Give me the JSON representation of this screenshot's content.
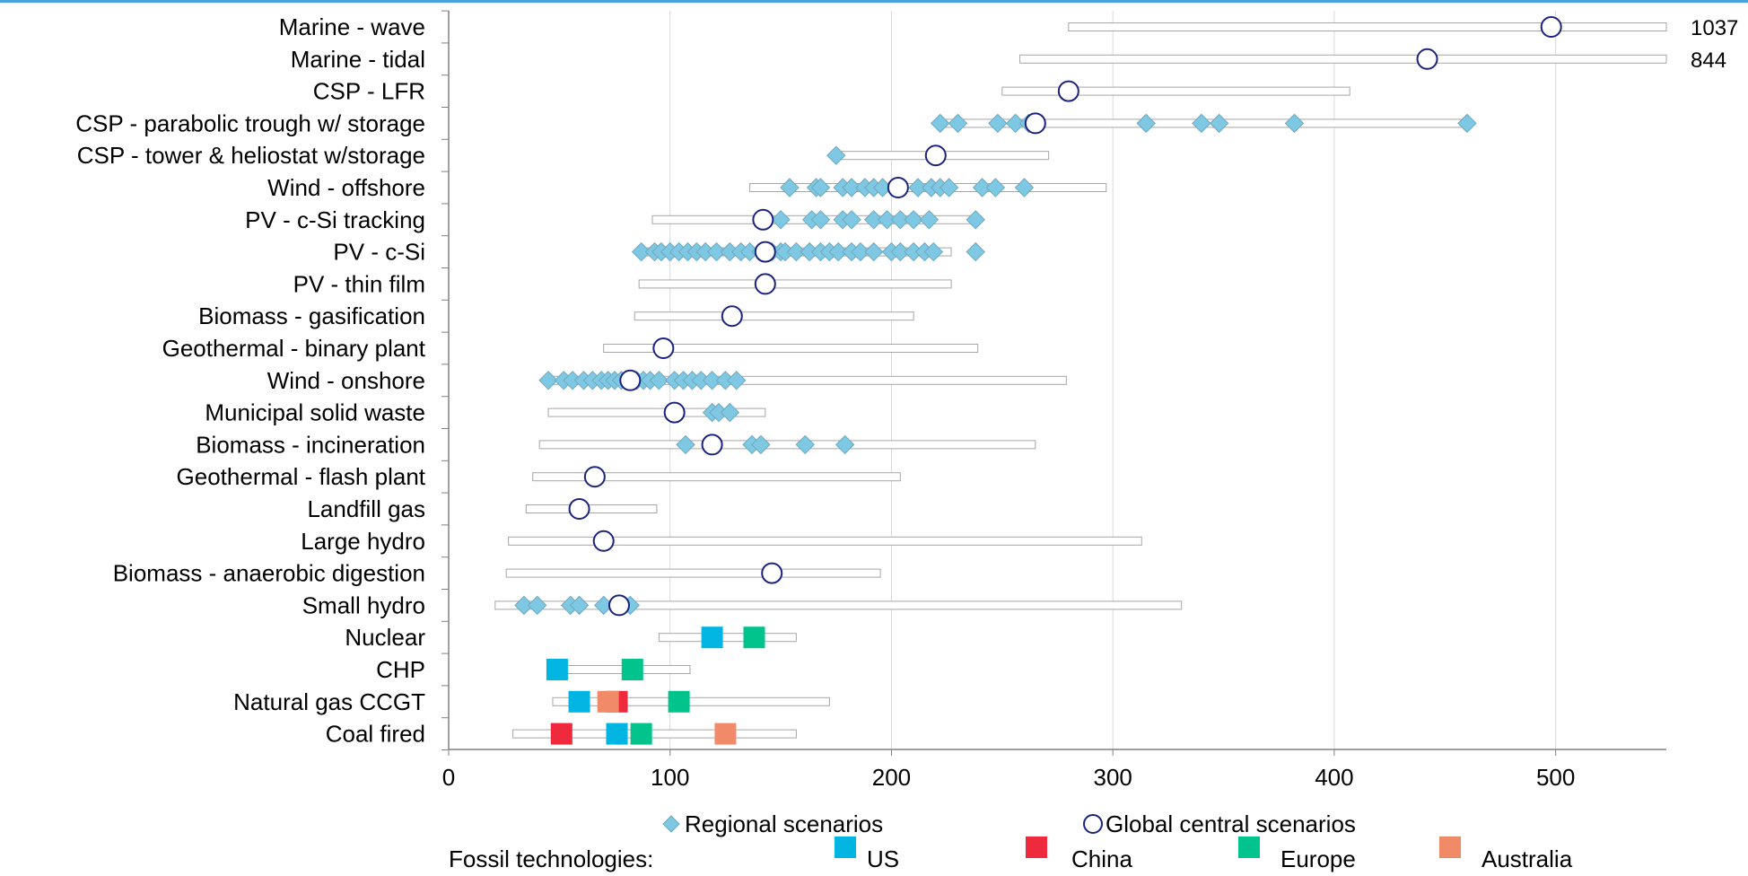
{
  "chart_data": {
    "type": "scatter",
    "title": "",
    "xlabel": "",
    "ylabel": "",
    "xlim": [
      0,
      550
    ],
    "xticks": [
      0,
      100,
      200,
      300,
      400,
      500
    ],
    "grid": "vertical",
    "categories": [
      "Marine - wave",
      "Marine - tidal",
      "CSP - LFR",
      "CSP - parabolic trough w/ storage",
      "CSP - tower & heliostat w/storage",
      "Wind - offshore",
      "PV - c-Si tracking",
      "PV - c-Si",
      "PV - thin film",
      "Biomass - gasification",
      "Geothermal - binary plant",
      "Wind - onshore",
      "Municipal solid waste",
      "Biomass - incineration",
      "Geothermal - flash plant",
      "Landfill gas",
      "Large hydro",
      "Biomass - anaerobic digestion",
      "Small hydro",
      "Nuclear",
      "CHP",
      "Natural gas CCGT",
      "Coal fired"
    ],
    "ranges": [
      {
        "min": 280,
        "max": 1037,
        "max_label": "1037"
      },
      {
        "min": 258,
        "max": 844,
        "max_label": "844"
      },
      {
        "min": 250,
        "max": 407
      },
      {
        "min": 222,
        "max": 462
      },
      {
        "min": 175,
        "max": 271
      },
      {
        "min": 136,
        "max": 297
      },
      {
        "min": 92,
        "max": 240
      },
      {
        "min": 88,
        "max": 227
      },
      {
        "min": 86,
        "max": 227
      },
      {
        "min": 84,
        "max": 210
      },
      {
        "min": 70,
        "max": 239
      },
      {
        "min": 45,
        "max": 279
      },
      {
        "min": 45,
        "max": 143
      },
      {
        "min": 41,
        "max": 265
      },
      {
        "min": 38,
        "max": 204
      },
      {
        "min": 35,
        "max": 94
      },
      {
        "min": 27,
        "max": 313
      },
      {
        "min": 26,
        "max": 195
      },
      {
        "min": 21,
        "max": 331
      },
      {
        "min": 95,
        "max": 157
      },
      {
        "min": 46,
        "max": 109
      },
      {
        "min": 47,
        "max": 172
      },
      {
        "min": 29,
        "max": 157
      }
    ],
    "series": [
      {
        "name": "Regional scenarios",
        "marker": "diamond",
        "color": "#7ec8e3",
        "values": [
          [],
          [],
          [],
          [
            222,
            230,
            248,
            256,
            262,
            315,
            340,
            348,
            382,
            460
          ],
          [
            175
          ],
          [
            154,
            166,
            168,
            178,
            182,
            188,
            192,
            196,
            212,
            218,
            222,
            226,
            241,
            247,
            260
          ],
          [
            150,
            164,
            168,
            178,
            182,
            192,
            198,
            204,
            210,
            217,
            238
          ],
          [
            87,
            93,
            96,
            100,
            104,
            108,
            112,
            116,
            121,
            127,
            132,
            136,
            141,
            146,
            150,
            152,
            157,
            163,
            168,
            172,
            176,
            182,
            186,
            192,
            200,
            204,
            210,
            215,
            219,
            238
          ],
          [],
          [],
          [],
          [
            45,
            52,
            56,
            61,
            65,
            69,
            72,
            75,
            78,
            81,
            85,
            88,
            91,
            95,
            102,
            106,
            110,
            114,
            119,
            125,
            130
          ],
          [
            119,
            122,
            127
          ],
          [
            107,
            137,
            141,
            161,
            179
          ],
          [],
          [],
          [],
          [],
          [
            34,
            40,
            55,
            59,
            70,
            82
          ],
          [],
          [],
          [],
          []
        ]
      },
      {
        "name": "Global central scenarios",
        "marker": "circle",
        "color": "#1a237e",
        "values": [
          498,
          442,
          280,
          265,
          220,
          203,
          142,
          143,
          143,
          128,
          97,
          82,
          102,
          119,
          66,
          59,
          70,
          146,
          77,
          null,
          null,
          null,
          null
        ]
      }
    ],
    "fossil": {
      "legend_title": "Fossil technologies:",
      "entries": [
        {
          "name": "US",
          "color": "#00b5e2"
        },
        {
          "name": "China",
          "color": "#ee2a3c"
        },
        {
          "name": "Europe",
          "color": "#00c48c"
        },
        {
          "name": "Australia",
          "color": "#f08a68"
        }
      ],
      "points": [
        {
          "row": 19,
          "region": "US",
          "value": 119
        },
        {
          "row": 19,
          "region": "Europe",
          "value": 138
        },
        {
          "row": 20,
          "region": "US",
          "value": 49
        },
        {
          "row": 20,
          "region": "Europe",
          "value": 83
        },
        {
          "row": 21,
          "region": "China",
          "value": 76
        },
        {
          "row": 21,
          "region": "US",
          "value": 59
        },
        {
          "row": 21,
          "region": "Australia",
          "value": 72
        },
        {
          "row": 21,
          "region": "Europe",
          "value": 104
        },
        {
          "row": 22,
          "region": "China",
          "value": 51
        },
        {
          "row": 22,
          "region": "US",
          "value": 76
        },
        {
          "row": 22,
          "region": "Europe",
          "value": 87
        },
        {
          "row": 22,
          "region": "Australia",
          "value": 125
        }
      ]
    },
    "legend": {
      "position": "bottom"
    }
  }
}
